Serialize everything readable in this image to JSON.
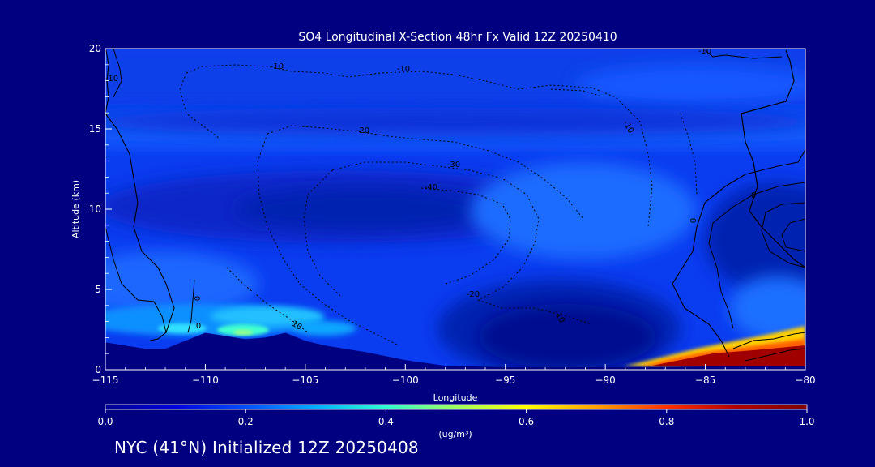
{
  "chart_data": {
    "type": "heatmap",
    "title": "SO4 Longitudinal X-Section 48hr  Fx Valid 12Z 20250410",
    "xlabel": "Longitude",
    "ylabel": "Altitude (km)",
    "xlim": [
      -115,
      -80
    ],
    "ylim": [
      0,
      20
    ],
    "x_ticks": [
      "−115",
      "−110",
      "−105",
      "−100",
      "−95",
      "−90",
      "−85",
      "−80"
    ],
    "y_ticks": [
      "0",
      "5",
      "10",
      "15",
      "20"
    ],
    "colorbar": {
      "range": [
        0.0,
        1.0
      ],
      "ticks": [
        "0.0",
        "0.2",
        "0.4",
        "0.6",
        "0.8",
        "1.0"
      ],
      "units": "(ug/m³)",
      "stops": [
        "#000090",
        "#0000e0",
        "#0050ff",
        "#00b0ff",
        "#30ffd0",
        "#a0ff60",
        "#ffff00",
        "#ffa000",
        "#ff3000",
        "#b00000",
        "#800000"
      ]
    },
    "contour_labels": [
      "-10",
      "-10",
      "-10",
      "-20",
      "-30",
      "-40",
      "-20",
      "-10",
      "-10",
      "-10",
      "0",
      "0",
      "0",
      "10",
      "0"
    ],
    "terrain_km": [
      [
        -115,
        1.7
      ],
      [
        -114,
        1.5
      ],
      [
        -113,
        1.3
      ],
      [
        -112,
        1.3
      ],
      [
        -111,
        1.8
      ],
      [
        -110,
        2.3
      ],
      [
        -109,
        2.1
      ],
      [
        -108,
        1.9
      ],
      [
        -107,
        2.0
      ],
      [
        -106,
        2.3
      ],
      [
        -105,
        1.8
      ],
      [
        -104,
        1.5
      ],
      [
        -103,
        1.3
      ],
      [
        -102,
        1.1
      ],
      [
        -100,
        0.6
      ],
      [
        -98,
        0.25
      ],
      [
        -95,
        0.15
      ],
      [
        -90,
        0.15
      ],
      [
        -85,
        0.2
      ],
      [
        -80,
        0.2
      ]
    ],
    "features": [
      {
        "name": "high SO4 layer near surface",
        "lon": [
          -88,
          -80
        ],
        "alt_km": [
          0.2,
          1.8
        ],
        "value": 1.0
      },
      {
        "name": "elevated SO4 near terrain",
        "lon": [
          -110,
          -104
        ],
        "alt_km": [
          1.6,
          3.0
        ],
        "value": 0.4
      },
      {
        "name": "low SO4 pocket",
        "lon": [
          -95,
          -85
        ],
        "alt_km": [
          0.5,
          4.0
        ],
        "value": 0.05
      }
    ]
  },
  "footer": {
    "text": "NYC (41°N) Initialized 12Z 20250408"
  }
}
